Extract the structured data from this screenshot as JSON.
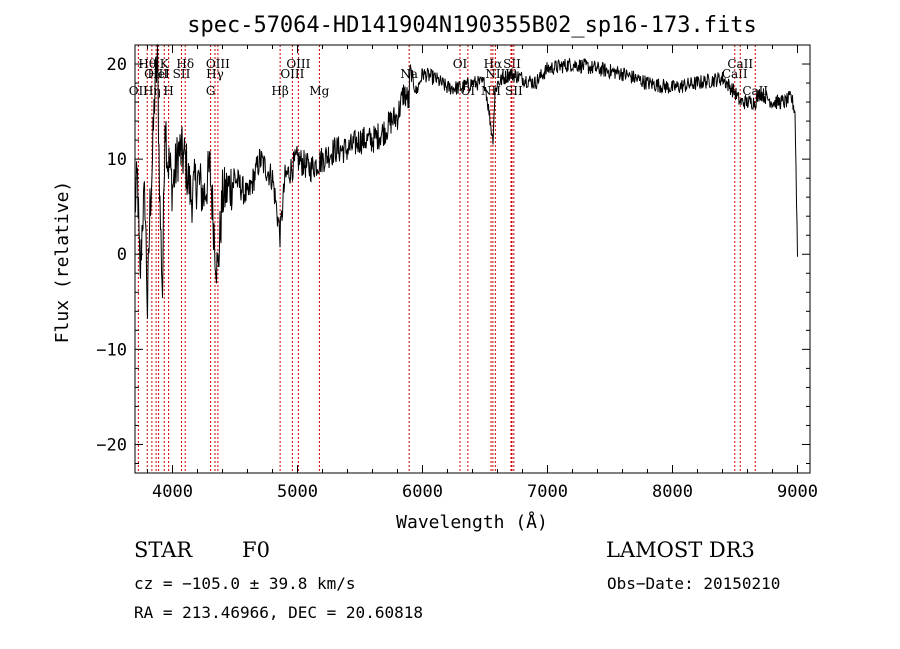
{
  "chart_data": {
    "type": "line",
    "title": "spec-57064-HD141904N190355B02_sp16-173.fits",
    "xlabel": "Wavelength (Å)",
    "ylabel": "Flux (relative)",
    "xlim": [
      3700,
      9100
    ],
    "ylim": [
      -23,
      22
    ],
    "xticks": [
      4000,
      5000,
      6000,
      7000,
      8000,
      9000
    ],
    "yticks": [
      -20,
      -10,
      0,
      10,
      20
    ],
    "series": [
      {
        "name": "spectrum",
        "x": [
          3700,
          3720,
          3740,
          3760,
          3780,
          3800,
          3820,
          3840,
          3860,
          3880,
          3900,
          3920,
          3940,
          3960,
          3980,
          4000,
          4050,
          4100,
          4150,
          4200,
          4250,
          4300,
          4340,
          4360,
          4400,
          4500,
          4600,
          4700,
          4800,
          4861,
          4900,
          5000,
          5100,
          5200,
          5300,
          5400,
          5500,
          5600,
          5700,
          5750,
          5800,
          5850,
          5893,
          5900,
          5950,
          6000,
          6100,
          6200,
          6300,
          6400,
          6500,
          6563,
          6580,
          6600,
          6700,
          6800,
          6900,
          7000,
          7200,
          7400,
          7600,
          7800,
          8000,
          8200,
          8400,
          8500,
          8542,
          8600,
          8662,
          8700,
          8800,
          8900,
          8950,
          8980,
          9000
        ],
        "y": [
          5,
          8,
          -3,
          4,
          6,
          -6,
          5,
          10,
          18,
          20,
          5,
          -4,
          15,
          10,
          9,
          7,
          11,
          10,
          6,
          8,
          6,
          9,
          1,
          -2,
          6,
          8,
          6,
          10,
          8,
          2,
          8,
          10,
          9,
          10,
          11,
          11,
          12,
          12,
          13,
          14,
          14.5,
          17,
          16,
          19.5,
          17,
          19,
          18.5,
          17.5,
          17.5,
          18,
          18,
          12,
          17,
          18,
          19,
          18.5,
          18,
          19.5,
          20,
          19.5,
          19,
          18,
          17.5,
          18,
          18.5,
          17,
          16,
          16,
          16,
          17,
          16,
          16,
          16.5,
          15,
          0
        ]
      }
    ],
    "spectral_lines": [
      {
        "label": "OII",
        "wavelength": 3727,
        "row": 3
      },
      {
        "label": "Hθ",
        "wavelength": 3798,
        "row": 1
      },
      {
        "label": "OIII",
        "wavelength": 3869,
        "row": 2
      },
      {
        "label": "K",
        "wavelength": 3934,
        "row": 1
      },
      {
        "label": "Hη",
        "wavelength": 3835,
        "row": 3
      },
      {
        "label": "HeI",
        "wavelength": 3889,
        "row": 2
      },
      {
        "label": "H",
        "wavelength": 3969,
        "row": 3
      },
      {
        "label": "SII",
        "wavelength": 4072,
        "row": 2
      },
      {
        "label": "Hδ",
        "wavelength": 4102,
        "row": 1
      },
      {
        "label": "G",
        "wavelength": 4305,
        "row": 3
      },
      {
        "label": "Hγ",
        "wavelength": 4340,
        "row": 2
      },
      {
        "label": "OIII",
        "wavelength": 4363,
        "row": 1
      },
      {
        "label": "Hβ",
        "wavelength": 4861,
        "row": 3
      },
      {
        "label": "OIII",
        "wavelength": 4959,
        "row": 2
      },
      {
        "label": "OIII",
        "wavelength": 5007,
        "row": 1
      },
      {
        "label": "Mg",
        "wavelength": 5175,
        "row": 3
      },
      {
        "label": "Na",
        "wavelength": 5893,
        "row": 2
      },
      {
        "label": "OI",
        "wavelength": 6300,
        "row": 1
      },
      {
        "label": "OI",
        "wavelength": 6363,
        "row": 3
      },
      {
        "label": "NII",
        "wavelength": 6548,
        "row": 3
      },
      {
        "label": "Hα",
        "wavelength": 6563,
        "row": 1
      },
      {
        "label": "NII",
        "wavelength": 6583,
        "row": 2
      },
      {
        "label": "SII",
        "wavelength": 6716,
        "row": 1
      },
      {
        "label": "Li",
        "wavelength": 6708,
        "row": 2
      },
      {
        "label": "SII",
        "wavelength": 6731,
        "row": 3
      },
      {
        "label": "CaII",
        "wavelength": 8498,
        "row": 2
      },
      {
        "label": "CaII",
        "wavelength": 8542,
        "row": 1
      },
      {
        "label": "CaII",
        "wavelength": 8662,
        "row": 3
      }
    ],
    "line_color": "#cc0000",
    "spectrum_color": "#000000"
  },
  "info": {
    "object_class": "STAR",
    "subclass": "F0",
    "survey": "LAMOST DR3",
    "cz": "cz = −105.0 ± 39.8 km/s",
    "obs_date": "Obs−Date: 20150210",
    "coords": "RA = 213.46966, DEC =  20.60818"
  }
}
